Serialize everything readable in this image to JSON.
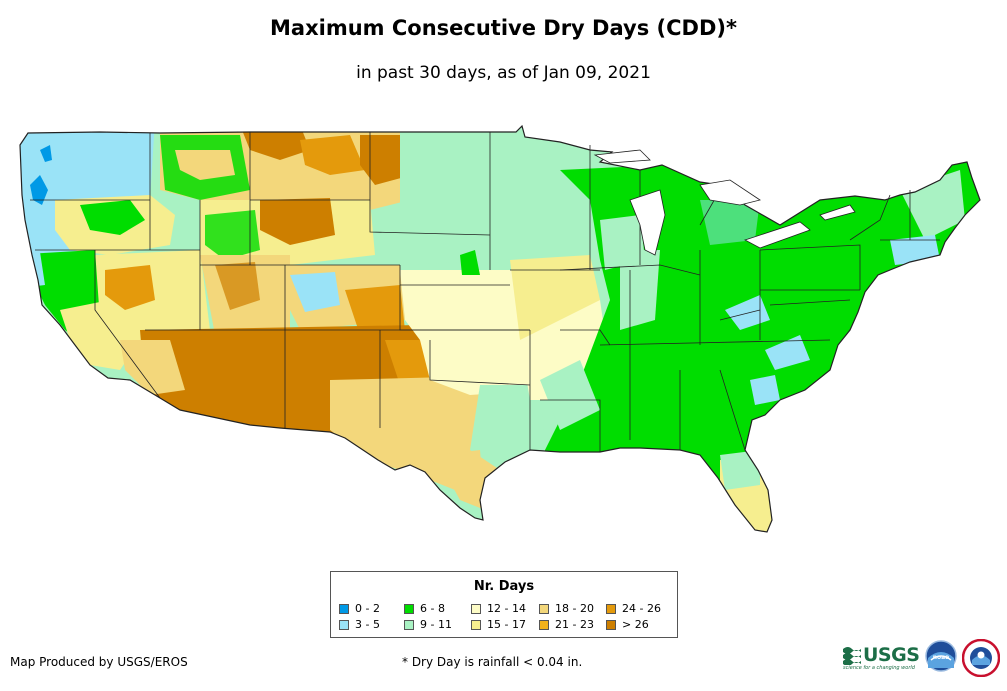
{
  "title": "Maximum Consecutive Dry Days (CDD)*",
  "subtitle": "in past 30 days, as of Jan 09, 2021",
  "legend": {
    "title": "Nr. Days",
    "items": [
      {
        "label": "0 - 2",
        "color": "#0099e6"
      },
      {
        "label": "3 - 5",
        "color": "#9ae3f7"
      },
      {
        "label": "6 - 8",
        "color": "#00dd00"
      },
      {
        "label": "9 - 11",
        "color": "#a9f2c3"
      },
      {
        "label": "12 - 14",
        "color": "#fdfcc6"
      },
      {
        "label": "15 - 17",
        "color": "#f6ee8f"
      },
      {
        "label": "18 - 20",
        "color": "#f3d77b"
      },
      {
        "label": "21 - 23",
        "color": "#f2b21b"
      },
      {
        "label": "24 - 26",
        "color": "#e49a0c"
      },
      {
        "label": "> 26",
        "color": "#cd7f00"
      }
    ]
  },
  "credit": "Map Produced by USGS/EROS",
  "footnote": "* Dry Day is rainfall < 0.04 in.",
  "logos": {
    "usgs_text": "USGS",
    "usgs_tagline": "science for a changing world",
    "noaa_text": "noaa",
    "nws_text": "NATIONAL WEATHER SERVICE"
  }
}
